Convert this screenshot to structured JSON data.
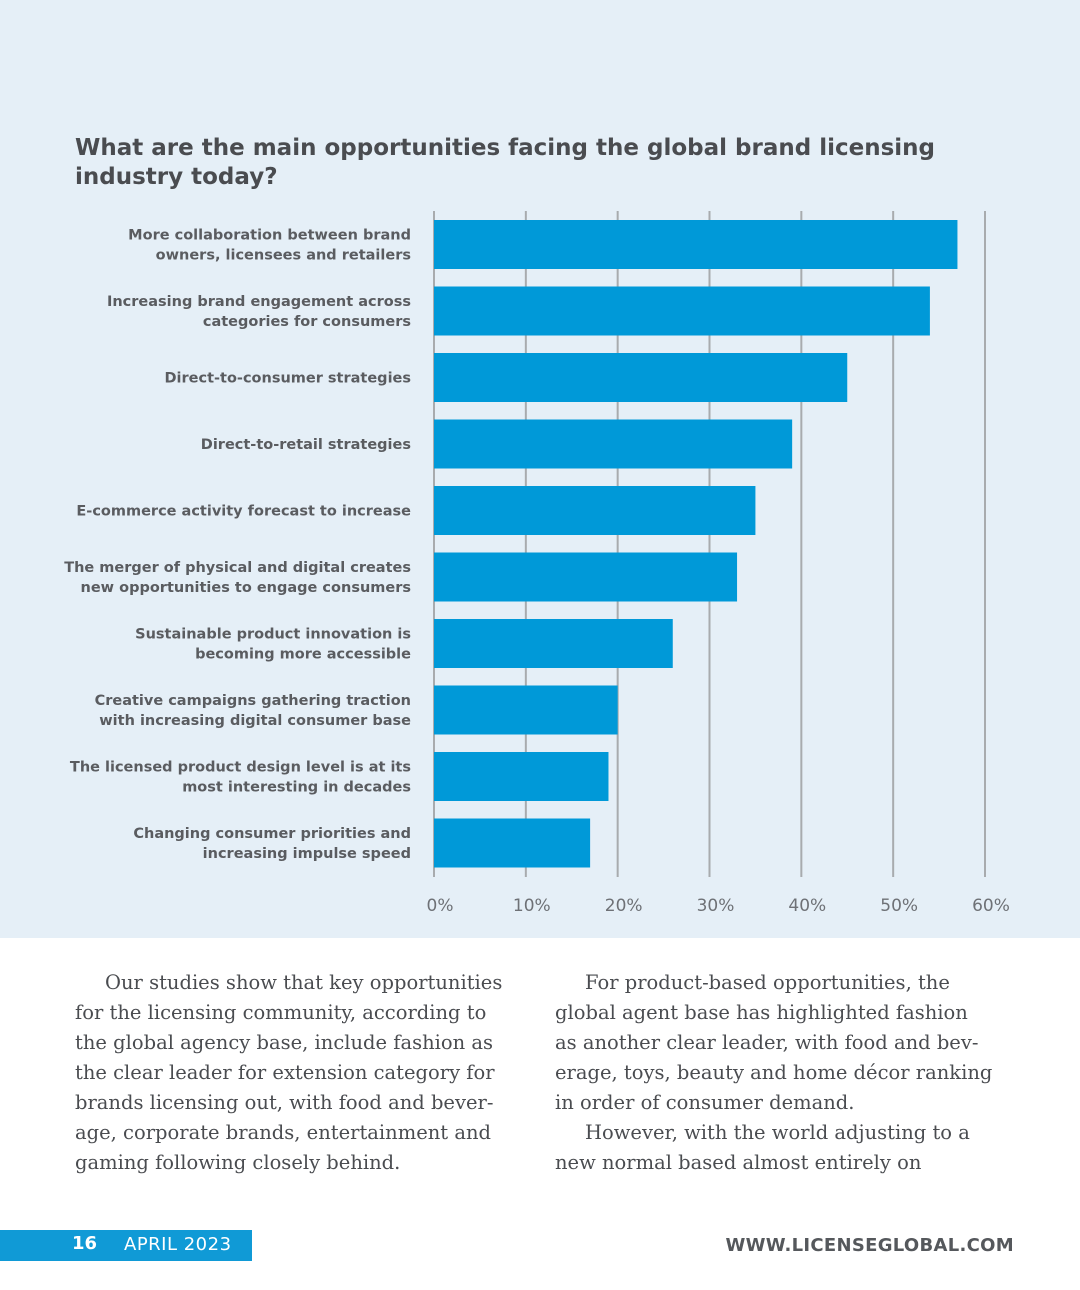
{
  "chart_data": {
    "type": "bar",
    "orientation": "horizontal",
    "title": "What are the main opportunities facing the global brand licensing industry today?",
    "categories": [
      [
        "More collaboration between brand",
        "owners, licensees and retailers"
      ],
      [
        "Increasing brand engagement across",
        "categories for consumers"
      ],
      [
        "Direct-to-consumer strategies"
      ],
      [
        "Direct-to-retail strategies"
      ],
      [
        "E-commerce activity forecast to increase"
      ],
      [
        "The merger of physical and digital creates",
        "new opportunities to engage consumers"
      ],
      [
        "Sustainable product innovation is",
        "becoming more accessible"
      ],
      [
        "Creative campaigns gathering traction",
        "with increasing digital consumer base"
      ],
      [
        "The licensed product design level is at its",
        "most interesting in decades"
      ],
      [
        "Changing consumer priorities and",
        "increasing impulse speed"
      ]
    ],
    "values": [
      57,
      54,
      45,
      39,
      35,
      33,
      26,
      20,
      19,
      17
    ],
    "xlim": [
      0,
      60
    ],
    "x_ticks": [
      0,
      10,
      20,
      30,
      40,
      50,
      60
    ],
    "x_tick_labels": [
      "0%",
      "10%",
      "20%",
      "30%",
      "40%",
      "50%",
      "60%"
    ],
    "bar_color": "#0099d8",
    "grid": true,
    "legend": "none"
  },
  "article": {
    "left_paragraphs": [
      "Our studies show that key opportunities for the licensing community, according to the global agency base, include fashion as the clear leader for extension category for brands licensing out, with food and bever-age, corporate brands, entertainment and gaming following closely behind."
    ],
    "right_paragraphs": [
      "For product-based opportunities, the global agent base has highlighted fashion as another clear leader, with food and bev-erage, toys, beauty and home décor ranking in order of consumer demand.",
      "However, with the world adjusting to a new normal based almost entirely on"
    ]
  },
  "footer": {
    "page_number": "16",
    "issue_date": "APRIL 2023",
    "website": "WWW.LICENSEGLOBAL.COM",
    "accent_color": "#109ad6"
  },
  "colors": {
    "panel_background": "#e5eff7",
    "gridline": "#a8abae",
    "text": "#4a4c50"
  }
}
